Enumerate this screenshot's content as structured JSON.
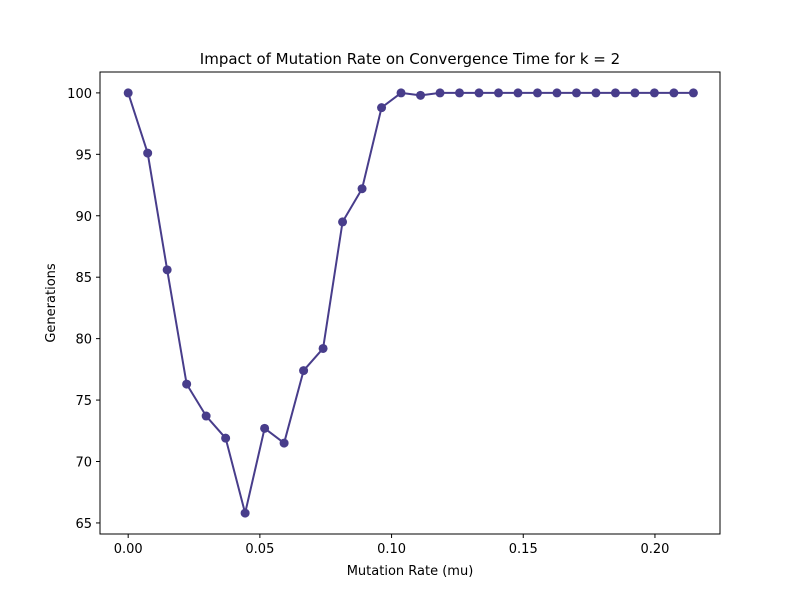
{
  "chart_data": {
    "type": "line",
    "title": "Impact of Mutation Rate on Convergence Time for k = 2",
    "xlabel": "Mutation Rate (mu)",
    "ylabel": "Generations",
    "xlim": [
      -0.0107,
      0.2247
    ],
    "ylim": [
      64.1,
      101.7
    ],
    "xticks": [
      "0.00",
      "0.05",
      "0.10",
      "0.15",
      "0.20"
    ],
    "yticks": [
      "65",
      "70",
      "75",
      "80",
      "85",
      "90",
      "95",
      "100"
    ],
    "grid": false,
    "series": [
      {
        "color": "#483d8b",
        "marker": "circle",
        "x": [
          0.0,
          0.0074,
          0.0148,
          0.0222,
          0.0296,
          0.037,
          0.0444,
          0.0518,
          0.0592,
          0.0666,
          0.074,
          0.0814,
          0.0888,
          0.0962,
          0.1036,
          0.111,
          0.1184,
          0.1258,
          0.1332,
          0.1406,
          0.148,
          0.1554,
          0.1628,
          0.1702,
          0.1776,
          0.185,
          0.1924,
          0.1998,
          0.2072,
          0.2146
        ],
        "y": [
          100.0,
          95.1,
          85.6,
          76.3,
          73.7,
          71.9,
          65.8,
          72.7,
          71.5,
          77.4,
          79.2,
          89.5,
          92.2,
          98.8,
          100.0,
          99.8,
          100.0,
          100.0,
          100.0,
          100.0,
          100.0,
          100.0,
          100.0,
          100.0,
          100.0,
          100.0,
          100.0,
          100.0,
          100.0,
          100.0
        ]
      }
    ]
  }
}
